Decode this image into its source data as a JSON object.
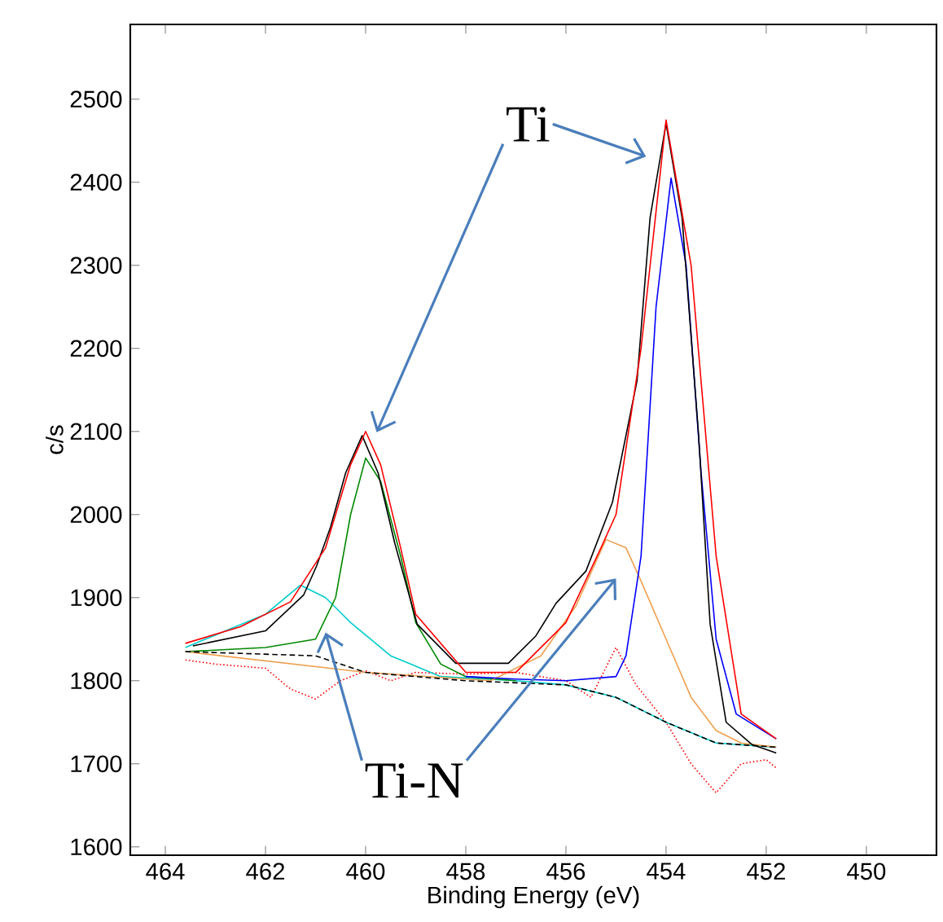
{
  "chart_data": {
    "type": "line",
    "xlabel": "Binding Energy (eV)",
    "ylabel": "c/s",
    "xlim": [
      464.7,
      448.6
    ],
    "ylim": [
      1590,
      2590
    ],
    "xticks": [
      464,
      462,
      460,
      458,
      456,
      454,
      452,
      450
    ],
    "yticks": [
      1600,
      1700,
      1800,
      1900,
      2000,
      2100,
      2200,
      2300,
      2400,
      2500
    ],
    "annotations": [
      "Ti",
      "Ti-N"
    ],
    "series": [
      {
        "color": "#ff0000",
        "line_style": "dotted",
        "x": [
          463.6,
          463,
          462,
          461.5,
          461,
          460.5,
          460,
          459.5,
          459,
          458,
          457,
          456,
          455.5,
          455,
          454.6,
          454,
          453.5,
          453,
          452.5,
          452,
          451.8
        ],
        "values": [
          1825,
          1820,
          1815,
          1790,
          1778,
          1800,
          1812,
          1800,
          1810,
          1808,
          1810,
          1800,
          1780,
          1840,
          1795,
          1750,
          1700,
          1665,
          1700,
          1705,
          1695
        ]
      },
      {
        "color": "#00cccc",
        "x": [
          463.6,
          462,
          461.3,
          460.8,
          460.3,
          459.5,
          458.5,
          457,
          456,
          455,
          454,
          453,
          451.8
        ],
        "values": [
          1840,
          1880,
          1915,
          1900,
          1870,
          1830,
          1805,
          1800,
          1795,
          1780,
          1750,
          1725,
          1720
        ]
      },
      {
        "color": "#008800",
        "x": [
          463.6,
          462,
          461,
          460.6,
          460.3,
          460.0,
          459.7,
          459.3,
          459,
          458.5,
          458,
          457
        ],
        "values": [
          1835,
          1840,
          1850,
          1900,
          2000,
          2068,
          2040,
          1950,
          1870,
          1820,
          1805,
          1800
        ]
      },
      {
        "color": "#f0a050",
        "x": [
          463.6,
          460,
          457.5,
          456.5,
          455.8,
          455.2,
          454.8,
          454.5,
          454,
          453.5,
          453,
          452.5,
          451.8
        ],
        "values": [
          1835,
          1810,
          1800,
          1830,
          1890,
          1970,
          1960,
          1920,
          1850,
          1780,
          1740,
          1725,
          1720
        ]
      },
      {
        "color": "#0000ff",
        "x": [
          458,
          457,
          456,
          455,
          454.8,
          454.5,
          454.2,
          453.9,
          453.6,
          453.3,
          453.0,
          452.6,
          451.8
        ],
        "values": [
          1805,
          1802,
          1800,
          1805,
          1830,
          1950,
          2250,
          2405,
          2300,
          2050,
          1850,
          1760,
          1730
        ]
      },
      {
        "color": "#000000",
        "x": [
          463.45,
          462.0,
          461.24,
          460.98,
          460.7,
          460.4,
          460.07,
          459.75,
          459.42,
          458.97,
          458.2,
          457.15,
          456.6,
          456.2,
          455.6,
          455.07,
          454.58,
          454.32,
          454.0,
          453.68,
          453.35,
          453.12,
          452.8,
          452.28,
          451.8
        ],
        "values": [
          1842,
          1860,
          1903,
          1938,
          1985,
          2050,
          2095,
          2050,
          1966,
          1868,
          1821,
          1821,
          1854,
          1893,
          1932,
          2015,
          2161,
          2357,
          2471,
          2357,
          2095,
          1868,
          1750,
          1723,
          1713
        ]
      },
      {
        "color": "#ff0000",
        "x": [
          463.6,
          462.5,
          461.5,
          460.8,
          460.3,
          460.0,
          459.7,
          459.3,
          459,
          458,
          457,
          456,
          455.3,
          455,
          454.5,
          454.0,
          453.5,
          453,
          452.5,
          451.8
        ],
        "values": [
          1845,
          1865,
          1895,
          1960,
          2060,
          2100,
          2060,
          1960,
          1880,
          1810,
          1810,
          1870,
          1960,
          2000,
          2200,
          2475,
          2300,
          1950,
          1760,
          1730
        ]
      },
      {
        "color": "#000000",
        "line_style": "dashed",
        "x": [
          463.6,
          461,
          460,
          458,
          456,
          455,
          454,
          453,
          451.8
        ],
        "values": [
          1835,
          1830,
          1810,
          1800,
          1795,
          1780,
          1750,
          1725,
          1720
        ]
      }
    ]
  }
}
